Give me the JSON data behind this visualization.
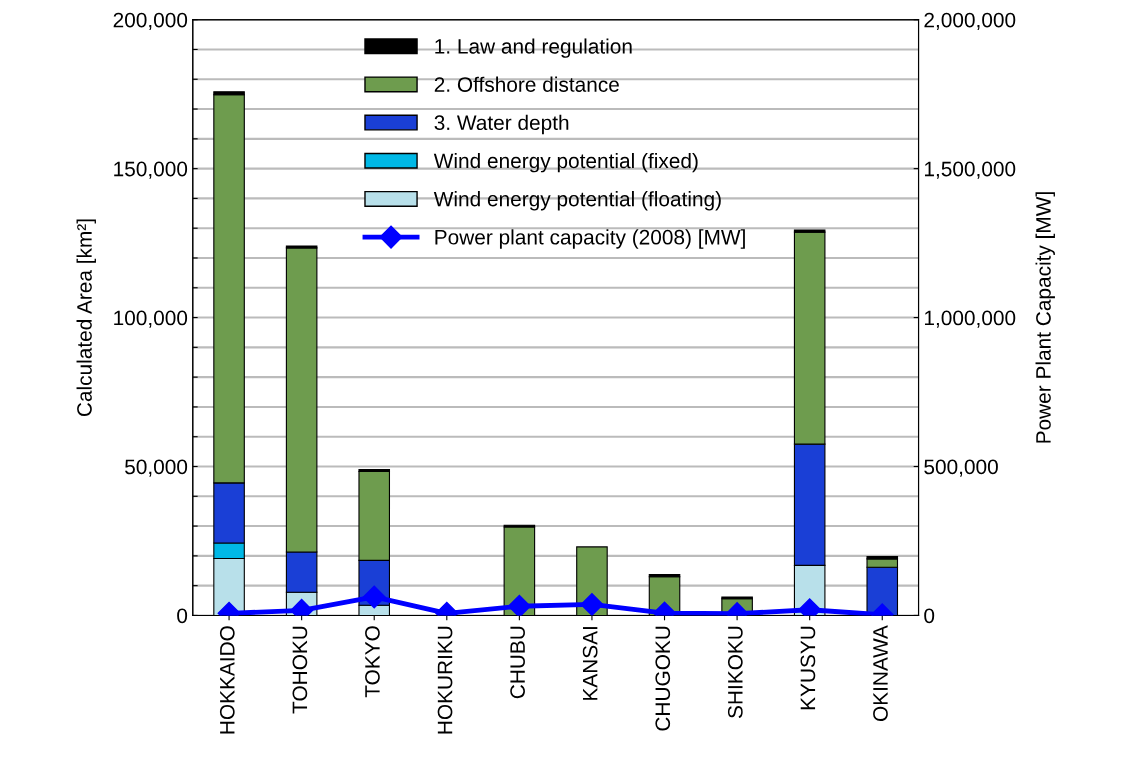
{
  "chart_data": {
    "type": "bar",
    "stacked": true,
    "ylabel": "Calculated Area [km²]",
    "y2label": "Power Plant Capacity [MW]",
    "categories": [
      "HOKKAIDO",
      "TOHOKU",
      "TOKYO",
      "HOKURIKU",
      "CHUBU",
      "KANSAI",
      "CHUGOKU",
      "SHIKOKU",
      "KYUSYU",
      "OKINAWA"
    ],
    "series": [
      {
        "name": "Wind energy potential (floating)",
        "color": "#b8e0ea",
        "values": [
          19100,
          7800,
          3400,
          0,
          null,
          0,
          0,
          0,
          16800,
          null
        ]
      },
      {
        "name": "Wind energy potential (fixed)",
        "color": "#00b8e6",
        "values": [
          5200,
          0,
          0,
          0,
          0,
          0,
          0,
          0,
          0,
          0
        ]
      },
      {
        "name": "3. Water depth",
        "color": "#1a3fd6",
        "values": [
          20200,
          13500,
          15100,
          0,
          null,
          null,
          0,
          0,
          40700,
          16200
        ]
      },
      {
        "name": "2. Offshore distance",
        "color": "#6e9c4e",
        "values": [
          130300,
          102100,
          29800,
          0,
          29700,
          23000,
          13000,
          5600,
          71200,
          2800
        ]
      },
      {
        "name": "1. Law and regulation",
        "color": "#000000",
        "values": [
          1000,
          600,
          700,
          0,
          600,
          0,
          700,
          600,
          700,
          800
        ]
      },
      {
        "name": "Power plant capacity (2008) [MW]",
        "type": "line",
        "axis": "y2",
        "color": "#0000ff",
        "marker": "diamond",
        "values": [
          7000,
          17000,
          62000,
          7000,
          31000,
          37000,
          8000,
          6000,
          19000,
          2000
        ]
      }
    ],
    "ylim": [
      0,
      200000
    ],
    "yticks": [
      {
        "value": 0,
        "label": "0"
      },
      {
        "value": 10000,
        "label": null
      },
      {
        "value": 20000,
        "label": null
      },
      {
        "value": 30000,
        "label": null
      },
      {
        "value": 40000,
        "label": null
      },
      {
        "value": 50000,
        "label": "50,000"
      },
      {
        "value": 60000,
        "label": null
      },
      {
        "value": 70000,
        "label": null
      },
      {
        "value": 80000,
        "label": null
      },
      {
        "value": 90000,
        "label": null
      },
      {
        "value": 100000,
        "label": "100,000"
      },
      {
        "value": 110000,
        "label": null
      },
      {
        "value": 120000,
        "label": null
      },
      {
        "value": 130000,
        "label": null
      },
      {
        "value": 140000,
        "label": null
      },
      {
        "value": 150000,
        "label": "150,000"
      },
      {
        "value": 160000,
        "label": null
      },
      {
        "value": 170000,
        "label": null
      },
      {
        "value": 180000,
        "label": null
      },
      {
        "value": 190000,
        "label": null
      },
      {
        "value": 200000,
        "label": "200,000"
      }
    ],
    "y2lim": [
      0,
      2000000
    ],
    "y2ticks": [
      {
        "value": 0,
        "label": "0"
      },
      {
        "value": 500000,
        "label": "500,000"
      },
      {
        "value": 1000000,
        "label": "1,000,000"
      },
      {
        "value": 1500000,
        "label": "1,500,000"
      },
      {
        "value": 2000000,
        "label": "2,000,000"
      }
    ],
    "grid": "y",
    "legend": "top"
  }
}
